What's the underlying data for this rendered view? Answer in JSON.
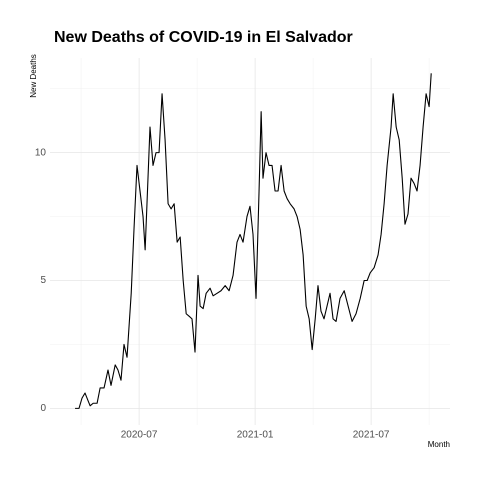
{
  "chart_data": {
    "type": "line",
    "title": "New Deaths of COVID-19 in El Salvador",
    "y_label": "New Deaths",
    "x_label": "Month",
    "grid": true,
    "xlim": [
      2020.116,
      2021.84
    ],
    "ylim": [
      -0.65,
      13.7
    ],
    "xticks": [
      {
        "value": 2020.5,
        "label": "2020-07"
      },
      {
        "value": 2021.0,
        "label": "2021-01"
      },
      {
        "value": 2021.5,
        "label": "2021-07"
      }
    ],
    "yticks": [
      0,
      5,
      10
    ],
    "series": [
      {
        "name": "New Deaths",
        "color": "#000000",
        "x": [
          2020.224,
          2020.241,
          2020.254,
          2020.267,
          2020.28,
          2020.289,
          2020.302,
          2020.319,
          2020.332,
          2020.349,
          2020.366,
          2020.379,
          2020.397,
          2020.409,
          2020.422,
          2020.435,
          2020.448,
          2020.466,
          2020.478,
          2020.491,
          2020.504,
          2020.517,
          2020.526,
          2020.534,
          2020.547,
          2020.56,
          2020.573,
          2020.586,
          2020.599,
          2020.612,
          2020.625,
          2020.638,
          2020.651,
          2020.664,
          2020.677,
          2020.69,
          2020.703,
          2020.716,
          2020.728,
          2020.741,
          2020.754,
          2020.763,
          2020.776,
          2020.789,
          2020.806,
          2020.819,
          2020.836,
          2020.853,
          2020.871,
          2020.888,
          2020.905,
          2020.922,
          2020.935,
          2020.948,
          2020.965,
          2020.978,
          2020.991,
          2021.004,
          2021.017,
          2021.026,
          2021.034,
          2021.047,
          2021.06,
          2021.073,
          2021.086,
          2021.099,
          2021.112,
          2021.125,
          2021.138,
          2021.151,
          2021.168,
          2021.181,
          2021.194,
          2021.207,
          2021.22,
          2021.233,
          2021.246,
          2021.259,
          2021.271,
          2021.284,
          2021.297,
          2021.31,
          2021.323,
          2021.336,
          2021.349,
          2021.366,
          2021.384,
          2021.401,
          2021.418,
          2021.435,
          2021.453,
          2021.47,
          2021.483,
          2021.496,
          2021.513,
          2021.53,
          2021.543,
          2021.556,
          2021.569,
          2021.586,
          2021.595,
          2021.608,
          2021.621,
          2021.634,
          2021.646,
          2021.659,
          2021.672,
          2021.685,
          2021.698,
          2021.711,
          2021.724,
          2021.737,
          2021.75,
          2021.759
        ],
        "values": [
          0,
          0,
          0.4,
          0.6,
          0.3,
          0.1,
          0.2,
          0.2,
          0.8,
          0.8,
          1.5,
          0.9,
          1.7,
          1.5,
          1.1,
          2.5,
          2.0,
          4.5,
          7.0,
          9.5,
          8.5,
          7.5,
          6.2,
          8.0,
          11.0,
          9.5,
          10.0,
          10.0,
          12.3,
          10.5,
          8.0,
          7.8,
          8.0,
          6.5,
          6.7,
          5.0,
          3.7,
          3.6,
          3.5,
          2.2,
          5.2,
          4.0,
          3.9,
          4.5,
          4.7,
          4.4,
          4.5,
          4.6,
          4.8,
          4.6,
          5.2,
          6.5,
          6.8,
          6.5,
          7.5,
          7.9,
          6.8,
          4.3,
          8.5,
          11.6,
          9.0,
          10.0,
          9.5,
          9.5,
          8.5,
          8.5,
          9.5,
          8.5,
          8.2,
          8.0,
          7.8,
          7.5,
          7.0,
          6.0,
          4.0,
          3.5,
          2.3,
          3.5,
          4.8,
          3.8,
          3.5,
          4.0,
          4.5,
          3.5,
          3.4,
          4.3,
          4.6,
          4.0,
          3.4,
          3.7,
          4.3,
          5.0,
          5.0,
          5.3,
          5.5,
          6.0,
          6.8,
          8.0,
          9.5,
          11.0,
          12.3,
          11.0,
          10.5,
          9.0,
          7.2,
          7.6,
          9.0,
          8.8,
          8.5,
          9.5,
          11.0,
          12.3,
          11.8,
          13.1
        ]
      }
    ]
  }
}
